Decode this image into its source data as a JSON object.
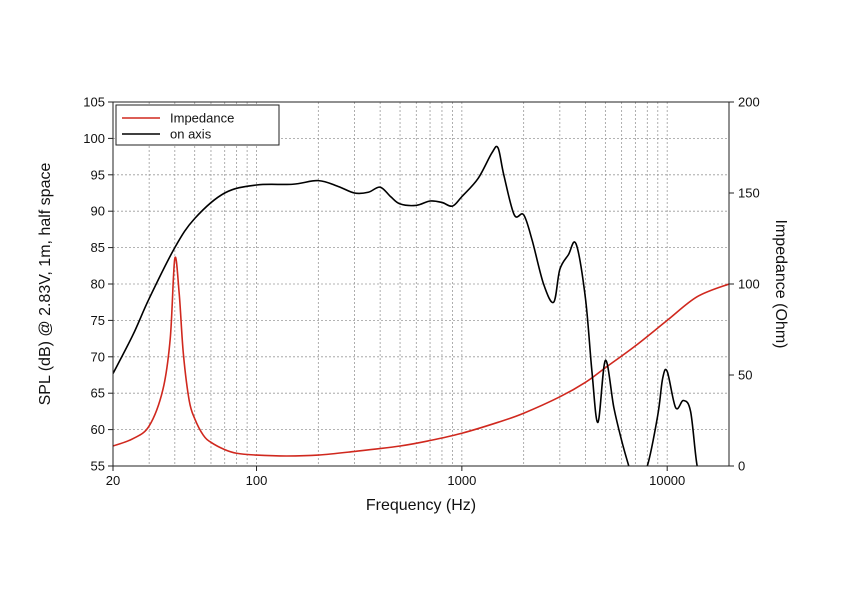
{
  "chart_data": {
    "type": "line",
    "title": "",
    "xlabel": "Frequency (Hz)",
    "ylabel_left": "SPL (dB) @ 2.83V, 1m, half space",
    "ylabel_right": "Impedance (Ohm)",
    "xscale": "log",
    "xlim": [
      20,
      20000
    ],
    "ylim_left": [
      55,
      105
    ],
    "ylim_right": [
      0,
      200
    ],
    "grid": true,
    "legend_position": "top-left",
    "x_tick_labels": [
      "20",
      "100",
      "1000",
      "10000"
    ],
    "y_left_tick_labels": [
      "55",
      "60",
      "65",
      "70",
      "75",
      "80",
      "85",
      "90",
      "95",
      "100",
      "105"
    ],
    "y_right_tick_labels": [
      "0",
      "50",
      "100",
      "150",
      "200"
    ],
    "series": [
      {
        "name": "Impedance",
        "axis": "right",
        "color": "#d0281e",
        "x": [
          20,
          25,
          30,
          35,
          38,
          40,
          42,
          44,
          47,
          50,
          55,
          60,
          70,
          80,
          100,
          140,
          200,
          300,
          500,
          700,
          1000,
          1500,
          2000,
          3000,
          4000,
          5000,
          7000,
          10000,
          14000,
          20000
        ],
        "y": [
          11,
          15,
          22,
          42,
          70,
          114,
          95,
          62,
          36,
          26,
          17,
          13,
          9,
          7,
          6,
          5.5,
          6,
          8,
          11,
          14,
          18,
          24,
          29,
          38,
          46,
          54,
          66,
          80,
          93,
          100
        ]
      },
      {
        "name": "on axis",
        "axis": "left",
        "color": "#000000",
        "x": [
          20,
          25,
          30,
          40,
          50,
          70,
          100,
          150,
          200,
          250,
          300,
          350,
          400,
          450,
          500,
          600,
          700,
          800,
          900,
          1000,
          1200,
          1400,
          1500,
          1600,
          1800,
          2000,
          2200,
          2500,
          2800,
          3000,
          3300,
          3600,
          4000,
          4300,
          4600,
          5000,
          5500,
          6000,
          6500,
          7000,
          8000,
          9000,
          9500,
          10000,
          11000,
          12000,
          13000,
          14000,
          15000
        ],
        "y": [
          67.7,
          73,
          78,
          85,
          89,
          92.5,
          93.6,
          93.7,
          94.2,
          93.4,
          92.5,
          92.6,
          93.3,
          92,
          91,
          90.8,
          91.4,
          91.2,
          90.7,
          92,
          94.5,
          98,
          98.7,
          95,
          89.5,
          89.5,
          86,
          80,
          77.5,
          82,
          84,
          85.5,
          78,
          68,
          61,
          69.5,
          63,
          58.5,
          55,
          52,
          55,
          62,
          67,
          68,
          63,
          64,
          62.5,
          55,
          54
        ]
      }
    ]
  }
}
